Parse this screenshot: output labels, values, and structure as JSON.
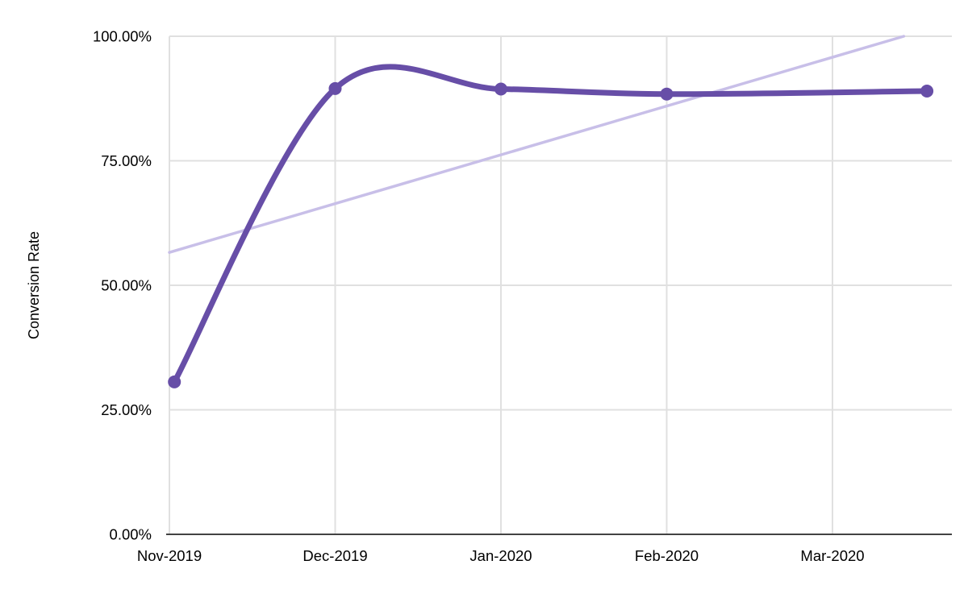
{
  "page": {
    "background": "#ffffff"
  },
  "chart_data": {
    "type": "line",
    "title": "",
    "xlabel": "",
    "ylabel": "Conversion Rate",
    "x_tick_labels": [
      "Nov-2019",
      "Dec-2019",
      "Jan-2020",
      "Feb-2020",
      "Mar-2020"
    ],
    "y_tick_labels": [
      "0.00%",
      "25.00%",
      "50.00%",
      "75.00%",
      "100.00%"
    ],
    "y_tick_values": [
      0,
      25,
      50,
      75,
      100
    ],
    "ylim": [
      0,
      100
    ],
    "grid": true,
    "legend": "none",
    "x_unit": "month index, 0 = Nov-2019 gridline, 1 = Dec-2019, ...",
    "series": [
      {
        "name": "Conversion Rate",
        "line": "smooth",
        "show_points": true,
        "color": "#674ea7",
        "stroke_width": 7,
        "point_radius": 8,
        "points": [
          {
            "x": 0.03,
            "y": 30.6
          },
          {
            "x": 1.0,
            "y": 89.5
          },
          {
            "x": 2.0,
            "y": 89.4
          },
          {
            "x": 3.0,
            "y": 88.4
          },
          {
            "x": 4.57,
            "y": 89.0
          }
        ]
      },
      {
        "name": "Trendline",
        "line": "straight",
        "show_points": false,
        "color": "#c8bfe8",
        "stroke_width": 3.5,
        "points": [
          {
            "x": 0.0,
            "y": 56.6
          },
          {
            "x": 4.43,
            "y": 100.0
          }
        ]
      }
    ],
    "colors": {
      "grid": "#e0e0e0",
      "axis": "#424242",
      "text": "#000000"
    }
  }
}
